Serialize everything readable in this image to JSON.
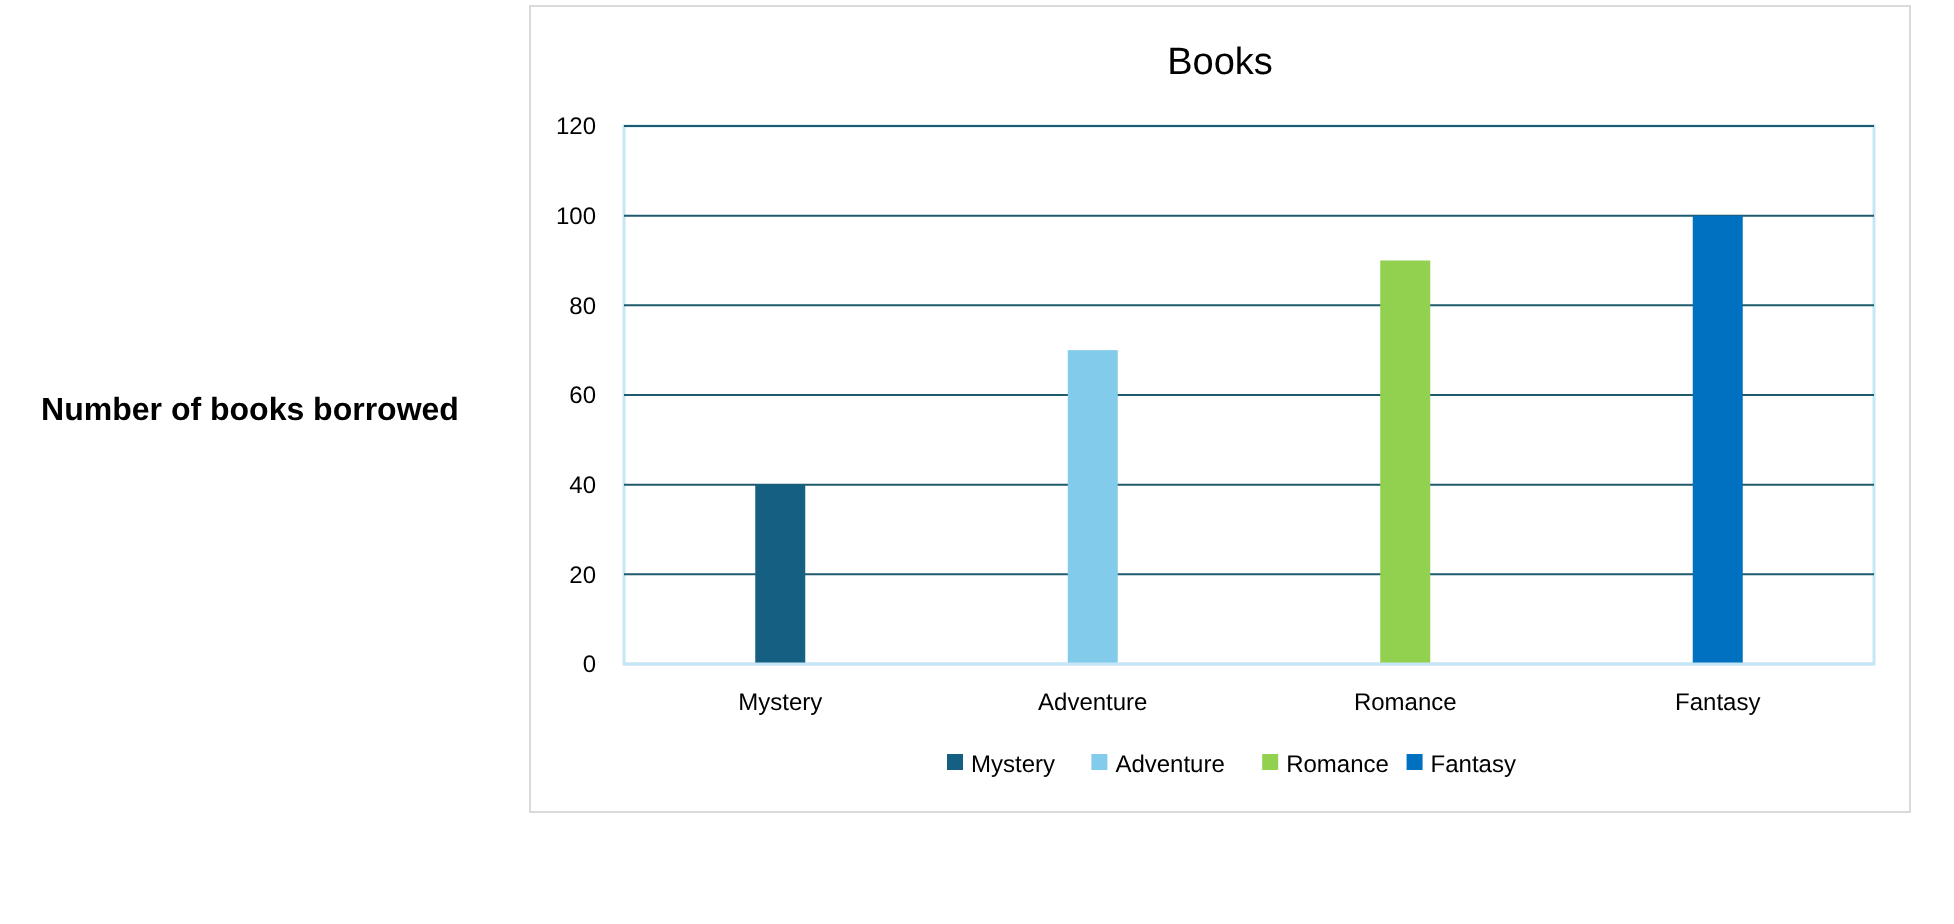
{
  "chart_data": {
    "type": "bar",
    "title": "Books",
    "ylabel": "Number of books borrowed",
    "categories": [
      "Mystery",
      "Adventure",
      "Romance",
      "Fantasy"
    ],
    "series": [
      {
        "name": "Mystery",
        "color": "#156082",
        "values": [
          40,
          null,
          null,
          null
        ]
      },
      {
        "name": "Adventure",
        "color": "#83cbeb",
        "values": [
          null,
          70,
          null,
          null
        ]
      },
      {
        "name": "Romance",
        "color": "#92d050",
        "values": [
          null,
          null,
          90,
          null
        ]
      },
      {
        "name": "Fantasy",
        "color": "#0070c0",
        "values": [
          null,
          null,
          null,
          100
        ]
      }
    ],
    "stacked": true,
    "ylim": [
      0,
      120
    ],
    "yticks": [
      0,
      20,
      40,
      60,
      80,
      100,
      120
    ],
    "grid": "y",
    "legend": "bottom"
  }
}
